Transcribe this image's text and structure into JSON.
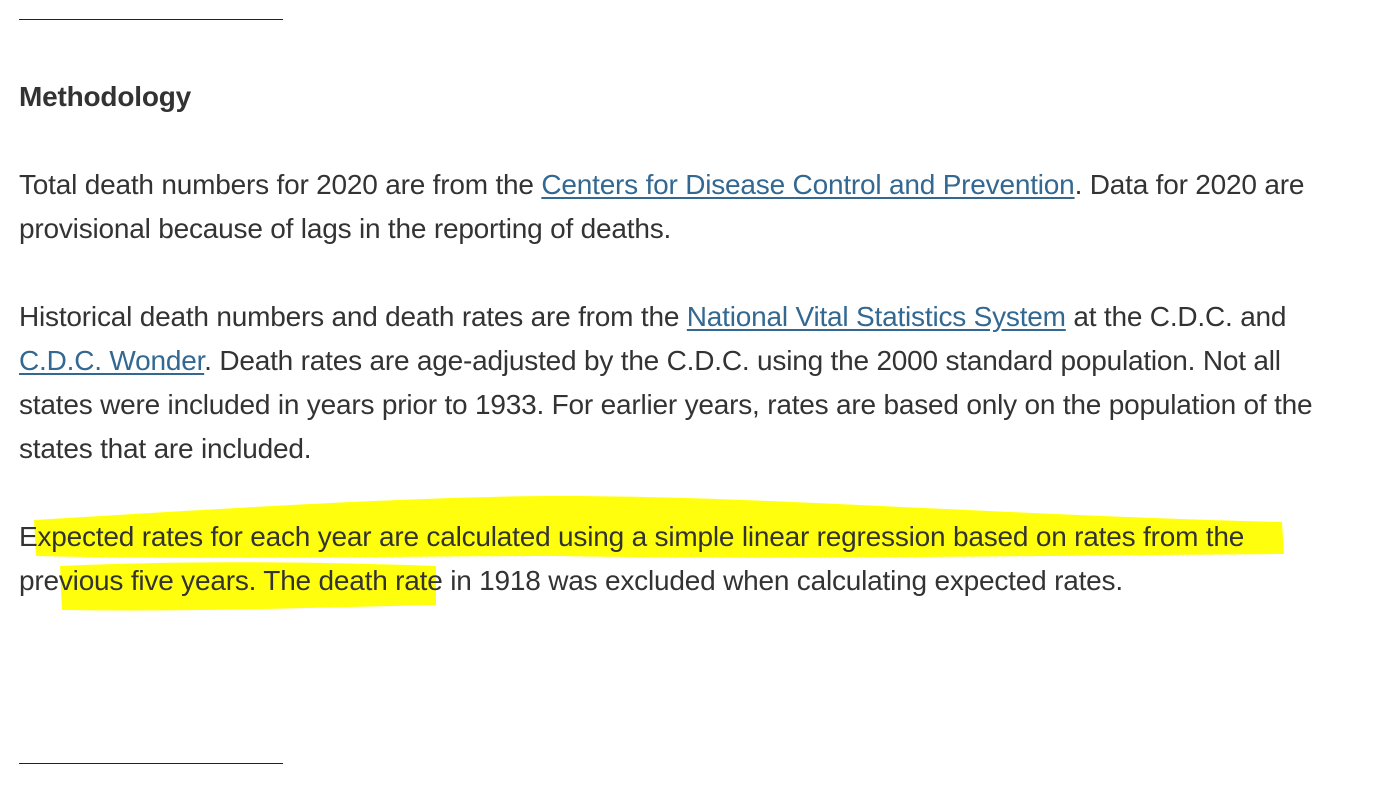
{
  "section": {
    "heading": "Methodology",
    "paragraph1": {
      "before": "Total death numbers for 2020 are from the ",
      "link": "Centers for Disease Control and Prevention",
      "after": ". Data for 2020 are provisional because of lags in the reporting of deaths."
    },
    "paragraph2": {
      "part1": "Historical death numbers and death rates are from the ",
      "link1": "National Vital Statistics System",
      "part2": " at the C.D.C. and ",
      "link2": "C.D.C. Wonder",
      "part3": ". Death rates are age-adjusted by the C.D.C. using the 2000 standard population. Not all states were included in years prior to 1933. For earlier years, rates are based only on the population of the states that are included."
    },
    "paragraph3": {
      "text": "Expected rates for each year are calculated using a simple linear regression based on rates from the previous five years. The death rate in 1918 was excluded when calculating expected rates."
    }
  },
  "colors": {
    "text": "#333333",
    "link": "#326891",
    "highlight": "#ffff00",
    "rule": "#222222"
  }
}
